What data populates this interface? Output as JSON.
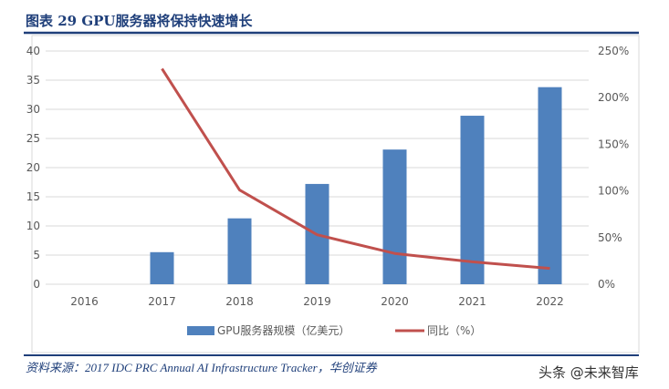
{
  "figure_title": "图表 29   GPU服务器将保持快速增长",
  "source": "资料来源：2017 IDC PRC Annual AI Infrastructure Tracker，华创证券",
  "watermark": "头条 @未来智库",
  "colors": {
    "bar": "#4f81bd",
    "line": "#c0504d",
    "title": "#1f3f7a"
  },
  "chart_data": {
    "type": "bar+line",
    "categories": [
      "2016",
      "2017",
      "2018",
      "2019",
      "2020",
      "2021",
      "2022"
    ],
    "series": [
      {
        "name": "GPU服务器规模（亿美元）",
        "type": "bar",
        "axis": "left",
        "values": [
          null,
          5.5,
          11.3,
          17.2,
          23.1,
          28.9,
          33.8
        ]
      },
      {
        "name": "同比（%）",
        "type": "line",
        "axis": "right",
        "values": [
          null,
          231,
          101,
          53,
          33,
          24,
          17
        ]
      }
    ],
    "left_axis": {
      "range": [
        0,
        40
      ],
      "ticks": [
        "0",
        "5",
        "10",
        "15",
        "20",
        "25",
        "30",
        "35",
        "40"
      ]
    },
    "right_axis": {
      "range": [
        0,
        250
      ],
      "ticks": [
        "0%",
        "50%",
        "100%",
        "150%",
        "200%",
        "250%"
      ]
    },
    "grid": true,
    "legend": "bottom"
  }
}
